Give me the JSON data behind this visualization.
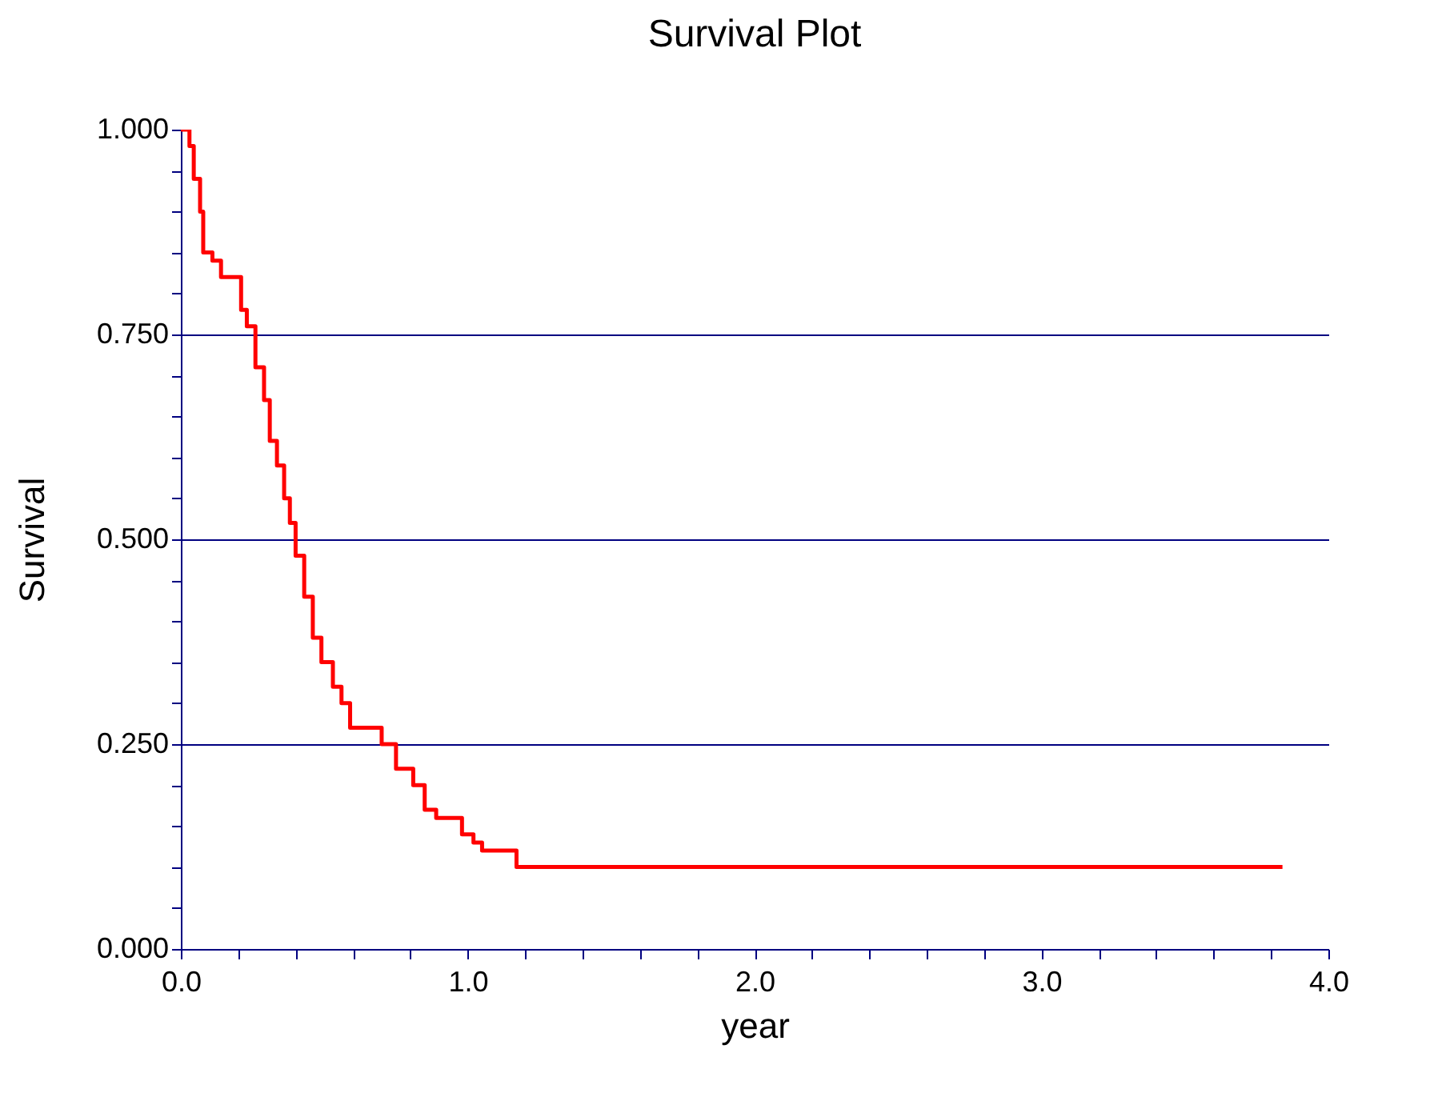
{
  "chart_data": {
    "type": "step",
    "title": "Survival Plot",
    "xlabel": "year",
    "ylabel": "Survival",
    "x": [
      0,
      0.03,
      0.045,
      0.067,
      0.078,
      0.11,
      0.14,
      0.18,
      0.21,
      0.23,
      0.26,
      0.29,
      0.31,
      0.335,
      0.36,
      0.38,
      0.4,
      0.43,
      0.46,
      0.49,
      0.53,
      0.56,
      0.59,
      0.64,
      0.7,
      0.75,
      0.81,
      0.85,
      0.89,
      0.93,
      0.98,
      1.02,
      1.05,
      1.13,
      1.17,
      3.84
    ],
    "series": [
      {
        "color": "#ff0000",
        "values": [
          1.0,
          0.98,
          0.94,
          0.9,
          0.85,
          0.84,
          0.82,
          0.82,
          0.78,
          0.76,
          0.71,
          0.67,
          0.62,
          0.59,
          0.55,
          0.52,
          0.48,
          0.43,
          0.38,
          0.35,
          0.32,
          0.3,
          0.27,
          0.27,
          0.25,
          0.22,
          0.2,
          0.17,
          0.16,
          0.16,
          0.14,
          0.13,
          0.12,
          0.12,
          0.1,
          0.1
        ]
      }
    ],
    "xlim": [
      0,
      4
    ],
    "ylim": [
      0,
      1
    ],
    "xticks": [
      {
        "value": 0,
        "label": "0.0"
      },
      {
        "value": 0.2,
        "label": null
      },
      {
        "value": 0.4,
        "label": null
      },
      {
        "value": 0.6,
        "label": null
      },
      {
        "value": 0.8,
        "label": null
      },
      {
        "value": 1,
        "label": "1.0"
      },
      {
        "value": 1.2,
        "label": null
      },
      {
        "value": 1.4,
        "label": null
      },
      {
        "value": 1.6,
        "label": null
      },
      {
        "value": 1.8,
        "label": null
      },
      {
        "value": 2,
        "label": "2.0"
      },
      {
        "value": 2.2,
        "label": null
      },
      {
        "value": 2.4,
        "label": null
      },
      {
        "value": 2.6,
        "label": null
      },
      {
        "value": 2.8,
        "label": null
      },
      {
        "value": 3,
        "label": "3.0"
      },
      {
        "value": 3.2,
        "label": null
      },
      {
        "value": 3.4,
        "label": null
      },
      {
        "value": 3.6,
        "label": null
      },
      {
        "value": 3.8,
        "label": null
      },
      {
        "value": 4,
        "label": "4.0"
      }
    ],
    "yticks": [
      {
        "value": 0,
        "label": "0.000"
      },
      {
        "value": 0.05,
        "label": null
      },
      {
        "value": 0.1,
        "label": null
      },
      {
        "value": 0.15,
        "label": null
      },
      {
        "value": 0.2,
        "label": null
      },
      {
        "value": 0.25,
        "label": "0.250"
      },
      {
        "value": 0.3,
        "label": null
      },
      {
        "value": 0.35,
        "label": null
      },
      {
        "value": 0.4,
        "label": null
      },
      {
        "value": 0.45,
        "label": null
      },
      {
        "value": 0.5,
        "label": "0.500"
      },
      {
        "value": 0.55,
        "label": null
      },
      {
        "value": 0.6,
        "label": null
      },
      {
        "value": 0.65,
        "label": null
      },
      {
        "value": 0.7,
        "label": null
      },
      {
        "value": 0.75,
        "label": "0.750"
      },
      {
        "value": 0.8,
        "label": null
      },
      {
        "value": 0.85,
        "label": null
      },
      {
        "value": 0.9,
        "label": null
      },
      {
        "value": 0.95,
        "label": null
      },
      {
        "value": 1,
        "label": "1.000"
      }
    ],
    "grid": "y",
    "line_style": "solid"
  }
}
